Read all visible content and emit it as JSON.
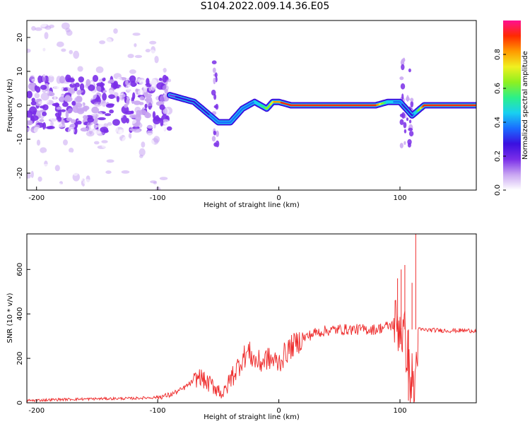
{
  "figure": {
    "title": "S104.2022.009.14.36.E05"
  },
  "colors": {
    "colormap": [
      "#ffffff",
      "#c9a6f2",
      "#7a2ee8",
      "#3a10e0",
      "#1a6cff",
      "#19d0f0",
      "#2bf08a",
      "#8ef020",
      "#f0f020",
      "#ff9a00",
      "#ff2a00",
      "#ff1090"
    ],
    "snr_line": "#ee2a2a"
  },
  "chart_data": [
    {
      "type": "heatmap",
      "xlabel": "Height of straight line (km)",
      "ylabel": "Frequency (Hz)",
      "xlim": [
        -208,
        163
      ],
      "ylim": [
        -25,
        25
      ],
      "x_ticks": [
        "-200",
        "-100",
        "0",
        "100"
      ],
      "x_tick_values": [
        -200,
        -100,
        0,
        100
      ],
      "y_ticks": [
        "20",
        "10",
        "0",
        "-10",
        "-20"
      ],
      "y_tick_values": [
        20,
        10,
        0,
        -10,
        -20
      ],
      "colorbar": {
        "label": "Normalized spectral amplitude",
        "range": [
          0,
          1
        ],
        "ticks": [
          "0.0",
          "0.2",
          "0.4",
          "0.6",
          "0.8"
        ],
        "tick_values": [
          0,
          0.2,
          0.4,
          0.6,
          0.8
        ]
      },
      "ridge": {
        "x": [
          -90,
          -80,
          -70,
          -60,
          -50,
          -40,
          -30,
          -20,
          -15,
          -10,
          -5,
          0,
          10,
          20,
          40,
          60,
          80,
          90,
          100,
          105,
          110,
          120,
          140,
          163
        ],
        "freq": [
          3,
          2,
          1,
          -2,
          -5,
          -5,
          -1,
          1,
          0,
          -1,
          1,
          1,
          0,
          0,
          0,
          0,
          0,
          1,
          1,
          -1,
          -3,
          0,
          0,
          0
        ],
        "amplitude": [
          0.25,
          0.3,
          0.3,
          0.35,
          0.4,
          0.4,
          0.45,
          0.45,
          0.55,
          0.65,
          0.8,
          0.9,
          0.95,
          0.98,
          0.98,
          0.98,
          0.98,
          0.5,
          0.4,
          0.3,
          0.3,
          0.95,
          0.98,
          0.98
        ]
      }
    },
    {
      "type": "line",
      "xlabel": "Height of straight line (km)",
      "ylabel": "SNR (10 * v/v)",
      "xlim": [
        -208,
        163
      ],
      "ylim": [
        0,
        760
      ],
      "x_ticks": [
        "-200",
        "-100",
        "0",
        "100"
      ],
      "x_tick_values": [
        -200,
        -100,
        0,
        100
      ],
      "y_ticks": [
        "0",
        "200",
        "400",
        "600"
      ],
      "y_tick_values": [
        0,
        200,
        400,
        600
      ],
      "series": [
        {
          "x": [
            -208,
            -180,
            -150,
            -120,
            -100,
            -90,
            -80,
            -70,
            -65,
            -60,
            -55,
            -50,
            -45,
            -40,
            -35,
            -30,
            -25,
            -20,
            -15,
            -10,
            -5,
            0,
            5,
            10,
            15,
            20,
            30,
            40,
            50,
            60,
            70,
            80,
            90,
            95,
            100,
            103,
            106,
            108,
            110,
            112,
            115,
            120,
            140,
            163
          ],
          "y": [
            10,
            15,
            18,
            20,
            25,
            35,
            60,
            100,
            120,
            90,
            80,
            60,
            40,
            110,
            150,
            200,
            230,
            190,
            180,
            200,
            190,
            180,
            220,
            250,
            270,
            290,
            315,
            325,
            330,
            330,
            330,
            330,
            345,
            350,
            350,
            300,
            250,
            80,
            100,
            40,
            330,
            328,
            325,
            325
          ],
          "spikes": [
            {
              "x": 98,
              "y": 560
            },
            {
              "x": 101,
              "y": 600
            },
            {
              "x": 104,
              "y": 620
            },
            {
              "x": 107,
              "y": 10
            },
            {
              "x": 110,
              "y": 540
            },
            {
              "x": 113,
              "y": 760
            }
          ]
        }
      ]
    }
  ]
}
